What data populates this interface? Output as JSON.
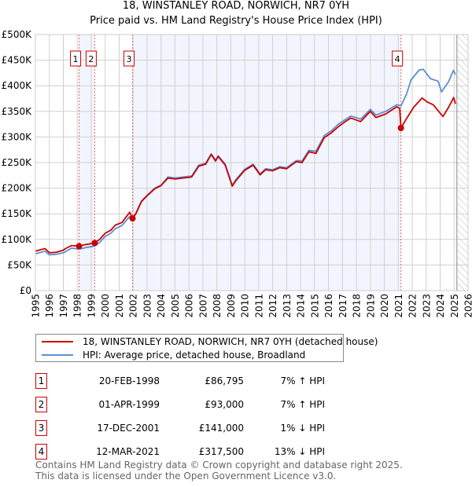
{
  "chart_data": {
    "type": "line",
    "title": "18, WINSTANLEY ROAD, NORWICH, NR7 0YH",
    "subtitle": "Price paid vs. HM Land Registry's House Price Index (HPI)",
    "xlim": [
      1995,
      2026
    ],
    "ylim": [
      0,
      500000
    ],
    "x_ticks": [
      "1995",
      "1996",
      "1997",
      "1998",
      "1999",
      "2000",
      "2001",
      "2002",
      "2003",
      "2004",
      "2005",
      "2006",
      "2007",
      "2008",
      "2009",
      "2010",
      "2011",
      "2012",
      "2013",
      "2014",
      "2015",
      "2016",
      "2017",
      "2018",
      "2019",
      "2020",
      "2021",
      "2022",
      "2023",
      "2024",
      "2025",
      "2026"
    ],
    "y_ticks": [
      {
        "v": 0,
        "label": "£0"
      },
      {
        "v": 50000,
        "label": "£50K"
      },
      {
        "v": 100000,
        "label": "£100K"
      },
      {
        "v": 150000,
        "label": "£150K"
      },
      {
        "v": 200000,
        "label": "£200K"
      },
      {
        "v": 250000,
        "label": "£250K"
      },
      {
        "v": 300000,
        "label": "£300K"
      },
      {
        "v": 350000,
        "label": "£350K"
      },
      {
        "v": 400000,
        "label": "£400K"
      },
      {
        "v": 450000,
        "label": "£450K"
      },
      {
        "v": 500000,
        "label": "£500K"
      }
    ],
    "grid": true,
    "legend_placement": "below",
    "forecast_start": 2025.2,
    "shaded_ranges": [
      [
        1998.13,
        1999.25
      ],
      [
        2001.96,
        2021.19
      ]
    ],
    "series": [
      {
        "name": "18, WINSTANLEY ROAD, NORWICH, NR7 0YH (detached house)",
        "color": "#cc0000",
        "points": [
          [
            1995,
            77
          ],
          [
            1995.4,
            80
          ],
          [
            1995.7,
            82
          ],
          [
            1996,
            74
          ],
          [
            1996.5,
            75
          ],
          [
            1997,
            79
          ],
          [
            1997.15,
            82
          ],
          [
            1997.6,
            88
          ],
          [
            1998.13,
            86.8
          ],
          [
            1998.6,
            90
          ],
          [
            1999.25,
            93
          ],
          [
            1999.6,
            100
          ],
          [
            2000,
            112
          ],
          [
            2000.4,
            118
          ],
          [
            2000.73,
            128
          ],
          [
            2001.2,
            133
          ],
          [
            2001.76,
            153
          ],
          [
            2001.96,
            141
          ],
          [
            2002.2,
            150
          ],
          [
            2002.6,
            174
          ],
          [
            2003,
            185
          ],
          [
            2003.55,
            199
          ],
          [
            2004,
            205
          ],
          [
            2004.5,
            220
          ],
          [
            2005,
            218
          ],
          [
            2005.6,
            220
          ],
          [
            2006.2,
            222
          ],
          [
            2006.7,
            243
          ],
          [
            2007.2,
            247
          ],
          [
            2007.6,
            266
          ],
          [
            2007.9,
            253
          ],
          [
            2008.1,
            262
          ],
          [
            2008.6,
            245
          ],
          [
            2009.1,
            204
          ],
          [
            2009.37,
            215
          ],
          [
            2010,
            235
          ],
          [
            2010.6,
            245
          ],
          [
            2011.1,
            226
          ],
          [
            2011.5,
            236
          ],
          [
            2012,
            234
          ],
          [
            2012.5,
            240
          ],
          [
            2013,
            238
          ],
          [
            2013.7,
            252
          ],
          [
            2014.1,
            250
          ],
          [
            2014.6,
            271
          ],
          [
            2015.1,
            268
          ],
          [
            2015.7,
            299
          ],
          [
            2016.2,
            308
          ],
          [
            2016.7,
            320
          ],
          [
            2017.2,
            330
          ],
          [
            2017.6,
            337
          ],
          [
            2018.3,
            330
          ],
          [
            2019,
            350
          ],
          [
            2019.4,
            338
          ],
          [
            2020.1,
            345
          ],
          [
            2020.9,
            359
          ],
          [
            2021.1,
            356
          ],
          [
            2021.19,
            317.5
          ],
          [
            2021.57,
            335
          ],
          [
            2022.1,
            358
          ],
          [
            2022.7,
            376
          ],
          [
            2023.1,
            368
          ],
          [
            2023.5,
            363
          ],
          [
            2024.2,
            340
          ],
          [
            2024.6,
            358
          ],
          [
            2024.97,
            377
          ],
          [
            2025.1,
            365
          ]
        ]
      },
      {
        "name": "HPI: Average price, detached house, Broadland",
        "color": "#5b8fd4",
        "points": [
          [
            1995,
            72
          ],
          [
            1995.4,
            75
          ],
          [
            1995.7,
            77
          ],
          [
            1996,
            70
          ],
          [
            1996.5,
            71
          ],
          [
            1997,
            74
          ],
          [
            1997.15,
            76
          ],
          [
            1997.6,
            83
          ],
          [
            1998.13,
            81
          ],
          [
            1998.6,
            84
          ],
          [
            1999.25,
            87
          ],
          [
            1999.6,
            94
          ],
          [
            2000,
            106
          ],
          [
            2000.4,
            112
          ],
          [
            2000.73,
            121
          ],
          [
            2001.2,
            127
          ],
          [
            2001.76,
            145
          ],
          [
            2001.96,
            143
          ],
          [
            2002.2,
            151
          ],
          [
            2002.6,
            175
          ],
          [
            2003,
            186
          ],
          [
            2003.55,
            200
          ],
          [
            2004,
            206
          ],
          [
            2004.5,
            222
          ],
          [
            2005,
            220
          ],
          [
            2005.6,
            222
          ],
          [
            2006.2,
            224
          ],
          [
            2006.7,
            245
          ],
          [
            2007.2,
            249
          ],
          [
            2007.6,
            267
          ],
          [
            2007.9,
            255
          ],
          [
            2008.1,
            263
          ],
          [
            2008.6,
            247
          ],
          [
            2009.1,
            206
          ],
          [
            2009.37,
            217
          ],
          [
            2010,
            237
          ],
          [
            2010.6,
            247
          ],
          [
            2011.1,
            228
          ],
          [
            2011.5,
            238
          ],
          [
            2012,
            236
          ],
          [
            2012.5,
            242
          ],
          [
            2013,
            240
          ],
          [
            2013.7,
            254
          ],
          [
            2014.1,
            253
          ],
          [
            2014.6,
            274
          ],
          [
            2015.1,
            272
          ],
          [
            2015.7,
            303
          ],
          [
            2016.2,
            312
          ],
          [
            2016.7,
            325
          ],
          [
            2017.2,
            334
          ],
          [
            2017.6,
            341
          ],
          [
            2018.3,
            335
          ],
          [
            2019,
            354
          ],
          [
            2019.4,
            343
          ],
          [
            2020.1,
            350
          ],
          [
            2020.9,
            363
          ],
          [
            2021.2,
            361
          ],
          [
            2021.6,
            384
          ],
          [
            2021.9,
            411
          ],
          [
            2022.5,
            431
          ],
          [
            2022.8,
            432
          ],
          [
            2023.3,
            414
          ],
          [
            2023.85,
            409
          ],
          [
            2024.1,
            388
          ],
          [
            2024.6,
            408
          ],
          [
            2024.95,
            430
          ],
          [
            2025.1,
            422
          ]
        ]
      }
    ],
    "sales": [
      {
        "num": "1",
        "x": 1998.13,
        "y": 86.795
      },
      {
        "num": "2",
        "x": 1999.25,
        "y": 93.0
      },
      {
        "num": "3",
        "x": 2001.96,
        "y": 141.0
      },
      {
        "num": "4",
        "x": 2021.19,
        "y": 317.5
      }
    ]
  },
  "header": {
    "title": "18, WINSTANLEY ROAD, NORWICH, NR7 0YH",
    "subtitle": "Price paid vs. HM Land Registry's House Price Index (HPI)"
  },
  "legend": {
    "property": "18, WINSTANLEY ROAD, NORWICH, NR7 0YH (detached house)",
    "hpi": "HPI: Average price, detached house, Broadland"
  },
  "transactions": [
    {
      "num": "1",
      "date": "20-FEB-1998",
      "price": "£86,795",
      "hpi": "7% ↑ HPI"
    },
    {
      "num": "2",
      "date": "01-APR-1999",
      "price": "£93,000",
      "hpi": "7% ↑ HPI"
    },
    {
      "num": "3",
      "date": "17-DEC-2001",
      "price": "£141,000",
      "hpi": "1% ↓ HPI"
    },
    {
      "num": "4",
      "date": "12-MAR-2021",
      "price": "£317,500",
      "hpi": "13% ↓ HPI"
    }
  ],
  "footer": {
    "line1": "Contains HM Land Registry data © Crown copyright and database right 2025.",
    "line2": "This data is licensed under the Open Government Licence v3.0."
  }
}
